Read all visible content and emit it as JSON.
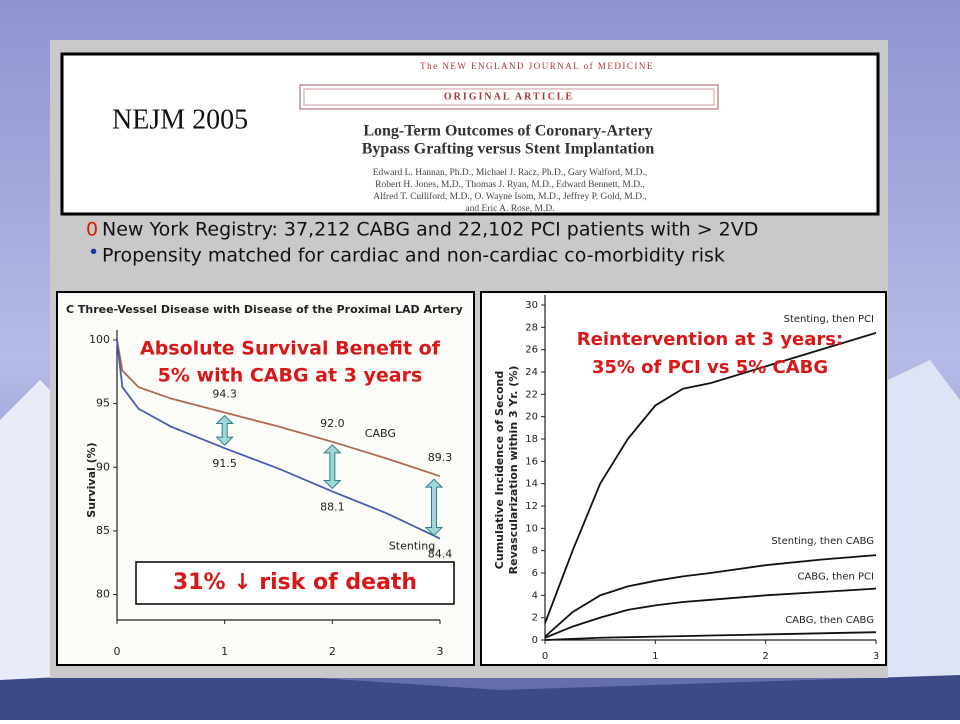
{
  "header": {
    "label": "NEJM 2005",
    "journal": "The NEW ENGLAND JOURNAL of MEDICINE",
    "section": "ORIGINAL ARTICLE",
    "title_lines": [
      "Long-Term Outcomes of Coronary-Artery",
      "Bypass Grafting versus Stent Implantation"
    ],
    "author_lines": [
      "Edward L. Hannan, Ph.D., Michael J. Racz, Ph.D., Gary Walford, M.D.,",
      "Robert H. Jones, M.D., Thomas J. Ryan, M.D., Edward Bennett, M.D.,",
      "Alfred T. Culliford, M.D., O. Wayne Isom, M.D., Jeffrey P. Gold, M.D.,",
      "and Eric A. Rose, M.D."
    ]
  },
  "bullets": [
    {
      "marker": "0",
      "text": "New York Registry: 37,212 CABG and 22,102 PCI patients with > 2VD"
    },
    {
      "marker": "•",
      "text": "Propensity matched for cardiac and non-cardiac co-morbidity risk"
    }
  ],
  "chart_data": [
    {
      "type": "line",
      "title": "C Three-Vessel Disease with Disease of the Proximal LAD Artery",
      "y_label": "Survival (%)",
      "x": [
        0,
        0.05,
        0.2,
        0.5,
        1,
        1.5,
        2,
        2.5,
        3
      ],
      "series": [
        {
          "name": "CABG",
          "color": "#b06a4c",
          "values": [
            100,
            97.6,
            96.3,
            95.4,
            94.3,
            93.2,
            92.0,
            90.7,
            89.3
          ],
          "value_labels": [
            null,
            null,
            null,
            null,
            "94.3",
            null,
            "92.0",
            null,
            "89.3"
          ]
        },
        {
          "name": "Stenting",
          "color": "#4a5cae",
          "values": [
            100,
            96.3,
            94.6,
            93.2,
            91.5,
            89.9,
            88.1,
            86.4,
            84.4
          ],
          "value_labels": [
            null,
            null,
            null,
            null,
            "91.5",
            null,
            "88.1",
            null,
            "84.4"
          ]
        }
      ],
      "xlim": [
        0,
        3
      ],
      "xticks": [
        0,
        1,
        2,
        3
      ],
      "ylim": [
        78,
        100
      ],
      "yticks": [
        80,
        85,
        90,
        95,
        100
      ],
      "annotations": [
        "Absolute Survival Benefit of",
        "5% with CABG at 3 years",
        "31% ↓ risk of death"
      ]
    },
    {
      "type": "line",
      "y_label_lines": [
        "Cumulative Incidence of Second",
        "Revascularization within 3 Yr. (%)"
      ],
      "x": [
        0,
        0.25,
        0.5,
        0.75,
        1,
        1.25,
        1.5,
        2,
        2.5,
        3
      ],
      "series": [
        {
          "name": "Stenting, then PCI",
          "color": "#111111",
          "values": [
            1.5,
            8,
            14,
            18,
            21,
            22.5,
            23,
            24.5,
            26,
            27.5
          ]
        },
        {
          "name": "Stenting, then CABG",
          "color": "#111111",
          "values": [
            0.3,
            2.5,
            4,
            4.8,
            5.3,
            5.7,
            6,
            6.7,
            7.2,
            7.6
          ]
        },
        {
          "name": "CABG, then PCI",
          "color": "#111111",
          "values": [
            0.2,
            1.2,
            2,
            2.7,
            3.1,
            3.4,
            3.6,
            4,
            4.3,
            4.6
          ]
        },
        {
          "name": "CABG, then CABG",
          "color": "#111111",
          "values": [
            0,
            0.1,
            0.2,
            0.25,
            0.3,
            0.35,
            0.4,
            0.5,
            0.6,
            0.7
          ]
        }
      ],
      "xlim": [
        0,
        3
      ],
      "xticks": [
        0,
        1,
        2,
        3
      ],
      "ylim": [
        0,
        30
      ],
      "yticks": [
        0,
        2,
        4,
        6,
        8,
        10,
        12,
        14,
        16,
        18,
        20,
        22,
        24,
        26,
        28,
        30
      ],
      "annotations": [
        "Reintervention at 3 years:",
        "35% of PCI vs 5% CABG"
      ]
    }
  ]
}
